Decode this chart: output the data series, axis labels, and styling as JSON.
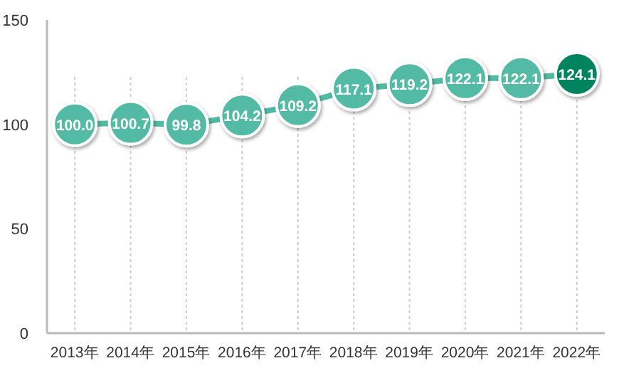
{
  "chart_data": {
    "type": "line",
    "categories": [
      "2013年",
      "2014年",
      "2015年",
      "2016年",
      "2017年",
      "2018年",
      "2019年",
      "2020年",
      "2021年",
      "2022年"
    ],
    "series": [
      {
        "color": "#52bba5",
        "colors": [
          "#52bba5",
          "#52bba5",
          "#52bba5",
          "#52bba5",
          "#52bba5",
          "#52bba5",
          "#52bba5",
          "#52bba5",
          "#52bba5",
          "#00845f"
        ],
        "values": [
          100.0,
          100.7,
          99.8,
          104.2,
          109.2,
          117.1,
          119.2,
          122.1,
          122.1,
          124.1
        ],
        "value_labels": [
          "100.0",
          "100.7",
          "99.8",
          "104.2",
          "109.2",
          "117.1",
          "119.2",
          "122.1",
          "122.1",
          "124.1"
        ]
      }
    ],
    "ylim": [
      0,
      150
    ],
    "yticks": [
      0,
      50,
      100,
      150
    ],
    "grid": "x",
    "marker": "circle",
    "line_style": "solid"
  }
}
